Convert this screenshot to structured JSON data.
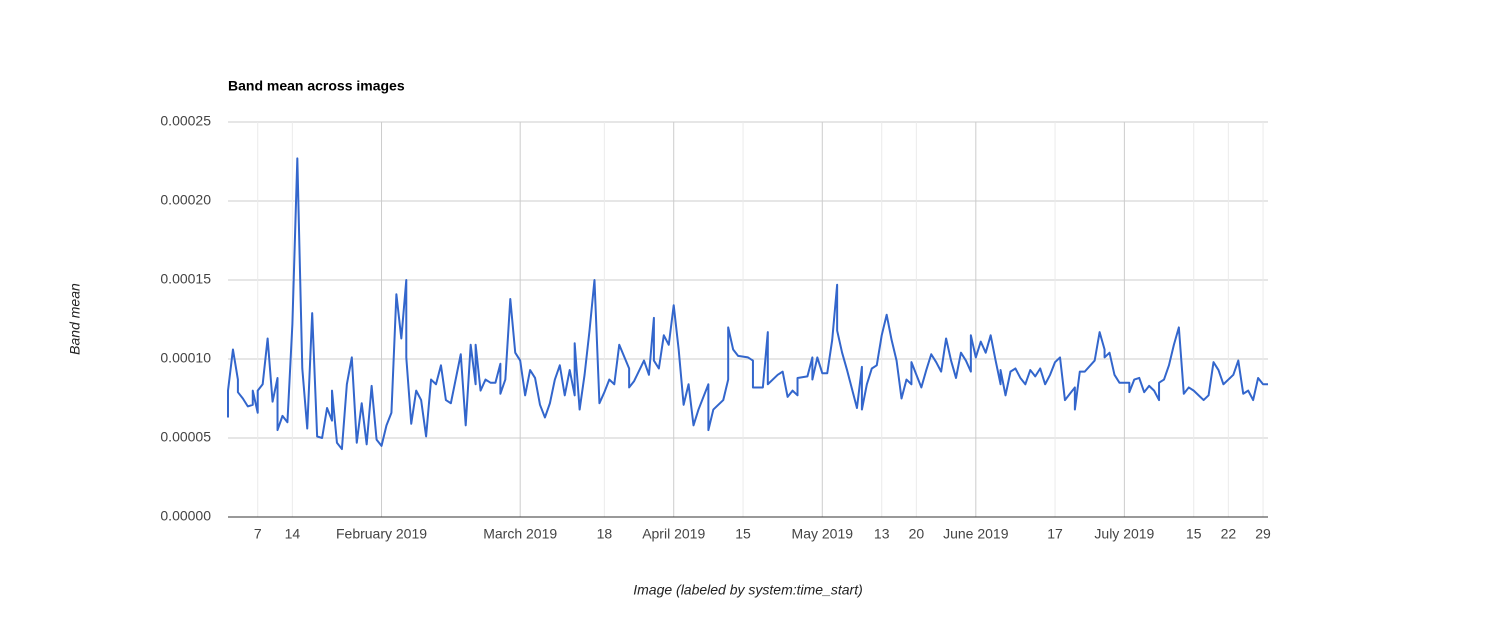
{
  "chart_data": {
    "type": "line",
    "title": "Band mean across images",
    "xlabel": "Image (labeled by system:time_start)",
    "ylabel": "Band mean",
    "color": "#3366cc",
    "grid": true,
    "xlim": [
      "2019-01-01",
      "2019-07-30"
    ],
    "ylim": [
      0,
      0.00025
    ],
    "yticks": [
      {
        "value": 0,
        "label": "0.00000"
      },
      {
        "value": 5e-05,
        "label": "0.00005"
      },
      {
        "value": 0.0001,
        "label": "0.00010"
      },
      {
        "value": 0.00015,
        "label": "0.00015"
      },
      {
        "value": 0.0002,
        "label": "0.00020"
      },
      {
        "value": 0.00025,
        "label": "0.00025"
      }
    ],
    "xticks": [
      {
        "value": "2019-01-07",
        "label": "7"
      },
      {
        "value": "2019-01-14",
        "label": "14"
      },
      {
        "value": "2019-02-01",
        "label": "February 2019"
      },
      {
        "value": "2019-03-01",
        "label": "March 2019"
      },
      {
        "value": "2019-03-18",
        "label": "18"
      },
      {
        "value": "2019-04-01",
        "label": "April 2019"
      },
      {
        "value": "2019-04-15",
        "label": "15"
      },
      {
        "value": "2019-05-01",
        "label": "May 2019"
      },
      {
        "value": "2019-05-13",
        "label": "13"
      },
      {
        "value": "2019-05-20",
        "label": "20"
      },
      {
        "value": "2019-06-01",
        "label": "June 2019"
      },
      {
        "value": "2019-06-17",
        "label": "17"
      },
      {
        "value": "2019-07-01",
        "label": "July 2019"
      },
      {
        "value": "2019-07-15",
        "label": "15"
      },
      {
        "value": "2019-07-22",
        "label": "22"
      },
      {
        "value": "2019-07-29",
        "label": "29"
      }
    ],
    "x": [
      "2019-01-01",
      "2019-01-01",
      "2019-01-02",
      "2019-01-03",
      "2019-01-03",
      "2019-01-04",
      "2019-01-05",
      "2019-01-06",
      "2019-01-06",
      "2019-01-07",
      "2019-01-07",
      "2019-01-08",
      "2019-01-09",
      "2019-01-10",
      "2019-01-11",
      "2019-01-11",
      "2019-01-12",
      "2019-01-13",
      "2019-01-14",
      "2019-01-15",
      "2019-01-16",
      "2019-01-17",
      "2019-01-18",
      "2019-01-19",
      "2019-01-20",
      "2019-01-21",
      "2019-01-22",
      "2019-01-22",
      "2019-01-23",
      "2019-01-24",
      "2019-01-25",
      "2019-01-26",
      "2019-01-27",
      "2019-01-28",
      "2019-01-29",
      "2019-01-30",
      "2019-01-31",
      "2019-02-01",
      "2019-02-02",
      "2019-02-03",
      "2019-02-04",
      "2019-02-05",
      "2019-02-06",
      "2019-02-06",
      "2019-02-07",
      "2019-02-08",
      "2019-02-09",
      "2019-02-10",
      "2019-02-11",
      "2019-02-12",
      "2019-02-13",
      "2019-02-14",
      "2019-02-15",
      "2019-02-17",
      "2019-02-18",
      "2019-02-19",
      "2019-02-20",
      "2019-02-20",
      "2019-02-21",
      "2019-02-22",
      "2019-02-23",
      "2019-02-24",
      "2019-02-25",
      "2019-02-25",
      "2019-02-26",
      "2019-02-27",
      "2019-02-28",
      "2019-03-01",
      "2019-03-02",
      "2019-03-03",
      "2019-03-04",
      "2019-03-05",
      "2019-03-06",
      "2019-03-07",
      "2019-03-08",
      "2019-03-09",
      "2019-03-10",
      "2019-03-11",
      "2019-03-12",
      "2019-03-12",
      "2019-03-13",
      "2019-03-14",
      "2019-03-15",
      "2019-03-16",
      "2019-03-17",
      "2019-03-18",
      "2019-03-19",
      "2019-03-20",
      "2019-03-21",
      "2019-03-23",
      "2019-03-23",
      "2019-03-24",
      "2019-03-26",
      "2019-03-27",
      "2019-03-28",
      "2019-03-28",
      "2019-03-29",
      "2019-03-30",
      "2019-03-31",
      "2019-04-01",
      "2019-04-02",
      "2019-04-03",
      "2019-04-04",
      "2019-04-05",
      "2019-04-06",
      "2019-04-08",
      "2019-04-08",
      "2019-04-09",
      "2019-04-10",
      "2019-04-11",
      "2019-04-12",
      "2019-04-12",
      "2019-04-13",
      "2019-04-14",
      "2019-04-16",
      "2019-04-17",
      "2019-04-17",
      "2019-04-19",
      "2019-04-20",
      "2019-04-20",
      "2019-04-22",
      "2019-04-23",
      "2019-04-24",
      "2019-04-25",
      "2019-04-26",
      "2019-04-26",
      "2019-04-28",
      "2019-04-29",
      "2019-04-29",
      "2019-04-30",
      "2019-05-01",
      "2019-05-02",
      "2019-05-03",
      "2019-05-04",
      "2019-05-04",
      "2019-05-05",
      "2019-05-06",
      "2019-05-08",
      "2019-05-09",
      "2019-05-09",
      "2019-05-10",
      "2019-05-11",
      "2019-05-12",
      "2019-05-13",
      "2019-05-14",
      "2019-05-15",
      "2019-05-16",
      "2019-05-17",
      "2019-05-18",
      "2019-05-19",
      "2019-05-19",
      "2019-05-21",
      "2019-05-22",
      "2019-05-23",
      "2019-05-24",
      "2019-05-25",
      "2019-05-26",
      "2019-05-27",
      "2019-05-28",
      "2019-05-29",
      "2019-05-30",
      "2019-05-31",
      "2019-05-31",
      "2019-06-01",
      "2019-06-02",
      "2019-06-03",
      "2019-06-04",
      "2019-06-05",
      "2019-06-06",
      "2019-06-06",
      "2019-06-07",
      "2019-06-08",
      "2019-06-09",
      "2019-06-10",
      "2019-06-11",
      "2019-06-12",
      "2019-06-13",
      "2019-06-14",
      "2019-06-15",
      "2019-06-16",
      "2019-06-17",
      "2019-06-18",
      "2019-06-19",
      "2019-06-20",
      "2019-06-21",
      "2019-06-21",
      "2019-06-22",
      "2019-06-23",
      "2019-06-25",
      "2019-06-26",
      "2019-06-27",
      "2019-06-27",
      "2019-06-28",
      "2019-06-29",
      "2019-06-30",
      "2019-07-02",
      "2019-07-02",
      "2019-07-03",
      "2019-07-04",
      "2019-07-05",
      "2019-07-06",
      "2019-07-07",
      "2019-07-08",
      "2019-07-08",
      "2019-07-09",
      "2019-07-10",
      "2019-07-11",
      "2019-07-12",
      "2019-07-13",
      "2019-07-14",
      "2019-07-15",
      "2019-07-16",
      "2019-07-17",
      "2019-07-18",
      "2019-07-19",
      "2019-07-20",
      "2019-07-21",
      "2019-07-22",
      "2019-07-23",
      "2019-07-24",
      "2019-07-25",
      "2019-07-26",
      "2019-07-27",
      "2019-07-28",
      "2019-07-29",
      "2019-07-30"
    ],
    "values": [
      6.3e-05,
      8e-05,
      0.000106,
      8.7e-05,
      7.9e-05,
      7.5e-05,
      7e-05,
      7.1e-05,
      8e-05,
      6.6e-05,
      8e-05,
      8.4e-05,
      0.000113,
      7.3e-05,
      8.8e-05,
      5.5e-05,
      6.4e-05,
      6e-05,
      0.000122,
      0.000227,
      9.4e-05,
      5.6e-05,
      0.000129,
      5.1e-05,
      5e-05,
      6.9e-05,
      6.1e-05,
      8e-05,
      4.7e-05,
      4.3e-05,
      8.4e-05,
      0.000101,
      4.7e-05,
      7.2e-05,
      4.6e-05,
      8.3e-05,
      4.9e-05,
      4.5e-05,
      5.8e-05,
      6.6e-05,
      0.000141,
      0.000113,
      0.00015,
      0.000101,
      5.9e-05,
      8e-05,
      7.4e-05,
      5.1e-05,
      8.7e-05,
      8.4e-05,
      9.6e-05,
      7.4e-05,
      7.2e-05,
      0.000103,
      5.8e-05,
      0.000109,
      8.4e-05,
      0.000109,
      8e-05,
      8.7e-05,
      8.5e-05,
      8.5e-05,
      9.7e-05,
      7.8e-05,
      8.7e-05,
      0.000138,
      0.000104,
      9.9e-05,
      7.7e-05,
      9.3e-05,
      8.8e-05,
      7.1e-05,
      6.3e-05,
      7.2e-05,
      8.7e-05,
      9.6e-05,
      7.7e-05,
      9.3e-05,
      7.7e-05,
      0.00011,
      6.8e-05,
      9e-05,
      0.000118,
      0.00015,
      7.2e-05,
      7.9e-05,
      8.7e-05,
      8.4e-05,
      0.000109,
      9.4e-05,
      8.2e-05,
      8.6e-05,
      9.9e-05,
      9e-05,
      0.000126,
      9.9e-05,
      9.4e-05,
      0.000115,
      0.000109,
      0.000134,
      0.000106,
      7.1e-05,
      8.4e-05,
      5.8e-05,
      6.8e-05,
      8.4e-05,
      5.5e-05,
      6.8e-05,
      7.1e-05,
      7.4e-05,
      8.7e-05,
      0.00012,
      0.000106,
      0.000102,
      0.000101,
      9.9e-05,
      8.2e-05,
      8.2e-05,
      0.000117,
      8.4e-05,
      9e-05,
      9.2e-05,
      7.6e-05,
      8e-05,
      7.7e-05,
      8.8e-05,
      8.9e-05,
      0.000101,
      8.7e-05,
      0.000101,
      9.1e-05,
      9.1e-05,
      0.000112,
      0.000147,
      0.000118,
      0.000104,
      9.3e-05,
      6.9e-05,
      9.5e-05,
      6.8e-05,
      8.4e-05,
      9.4e-05,
      9.6e-05,
      0.000115,
      0.000128,
      0.000112,
      9.9e-05,
      7.5e-05,
      8.7e-05,
      8.4e-05,
      9.8e-05,
      8.2e-05,
      9.3e-05,
      0.000103,
      9.8e-05,
      9.2e-05,
      0.000113,
      9.9e-05,
      8.8e-05,
      0.000104,
      9.9e-05,
      9.2e-05,
      0.000115,
      0.000101,
      0.000111,
      0.000104,
      0.000115,
      9.9e-05,
      8.4e-05,
      9.3e-05,
      7.7e-05,
      9.2e-05,
      9.4e-05,
      8.8e-05,
      8.4e-05,
      9.3e-05,
      8.9e-05,
      9.4e-05,
      8.4e-05,
      9e-05,
      9.8e-05,
      0.000101,
      7.4e-05,
      7.8e-05,
      8.2e-05,
      6.8e-05,
      9.2e-05,
      9.2e-05,
      9.9e-05,
      0.000117,
      0.000106,
      0.000101,
      0.000104,
      9e-05,
      8.5e-05,
      8.5e-05,
      7.9e-05,
      8.7e-05,
      8.8e-05,
      7.9e-05,
      8.3e-05,
      8e-05,
      7.4e-05,
      8.5e-05,
      8.7e-05,
      9.6e-05,
      0.000109,
      0.00012,
      7.8e-05,
      8.2e-05,
      8e-05,
      7.7e-05,
      7.4e-05,
      7.7e-05,
      9.8e-05,
      9.3e-05,
      8.4e-05,
      8.7e-05,
      9e-05,
      9.9e-05,
      7.8e-05,
      8e-05,
      7.4e-05,
      8.8e-05,
      8.4e-05,
      8.4e-05
    ]
  }
}
